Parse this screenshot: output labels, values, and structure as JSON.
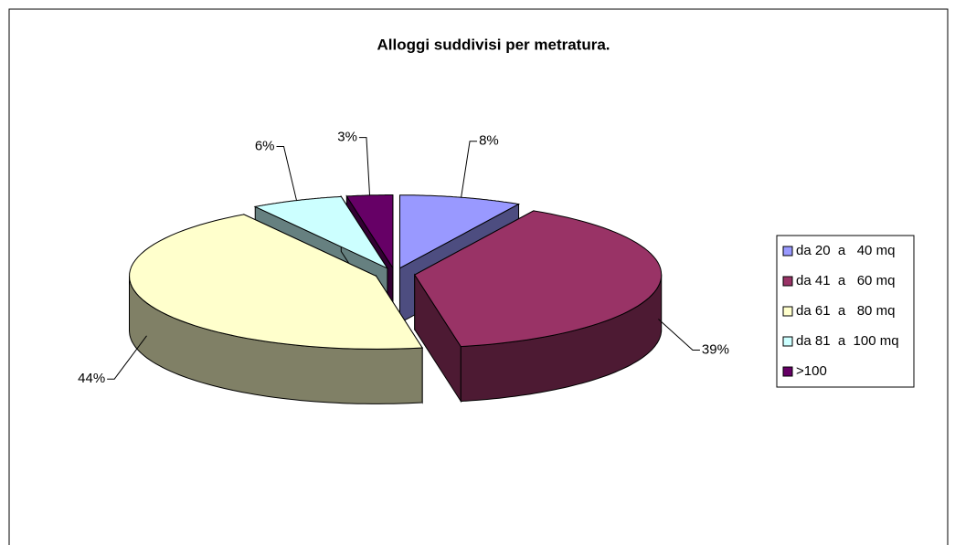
{
  "chart_data": {
    "type": "pie3d",
    "title": "Alloggi suddivisi per metratura.",
    "categories": [
      "da 20  a   40 mq",
      "da 41  a   60 mq",
      "da 61  a   80 mq",
      "da 81  a  100 mq",
      ">100"
    ],
    "values": [
      8,
      39,
      44,
      6,
      3
    ],
    "value_labels": [
      "8%",
      "39%",
      "44%",
      "6%",
      "3%"
    ],
    "colors": [
      "#9999FF",
      "#993366",
      "#FFFFCC",
      "#CCFFFF",
      "#660066"
    ],
    "legend": "right"
  }
}
